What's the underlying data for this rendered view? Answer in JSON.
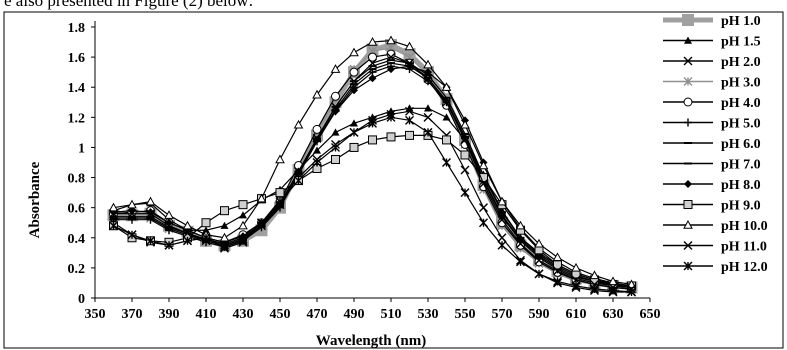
{
  "caption": "e also presented in Figure (2) below:",
  "chart_data": {
    "type": "line",
    "xlabel": "Wavelength (nm)",
    "ylabel": "Absorbance",
    "xlim": [
      350,
      650
    ],
    "ylim": [
      0,
      1.8
    ],
    "x_ticks": [
      350,
      370,
      390,
      410,
      430,
      450,
      470,
      490,
      510,
      530,
      550,
      570,
      590,
      610,
      630,
      650
    ],
    "y_ticks": [
      "0",
      "0.2",
      "0.4",
      "0.6",
      "0.8",
      "1",
      "1.2",
      "1.4",
      "1.6",
      "1.8"
    ],
    "y_tick_values": [
      0,
      0.2,
      0.4,
      0.6,
      0.8,
      1.0,
      1.2,
      1.4,
      1.6,
      1.8
    ],
    "grid": false,
    "legend": "right",
    "x": [
      360,
      370,
      380,
      390,
      400,
      410,
      420,
      430,
      440,
      450,
      460,
      470,
      480,
      490,
      500,
      510,
      520,
      530,
      540,
      550,
      560,
      570,
      580,
      590,
      600,
      610,
      620,
      630,
      640
    ],
    "series": [
      {
        "name": "pH 1.0",
        "marker": "square",
        "color": "#a0a0a0",
        "values": [
          0.55,
          0.55,
          0.56,
          0.48,
          0.44,
          0.38,
          0.35,
          0.38,
          0.45,
          0.6,
          0.85,
          1.08,
          1.3,
          1.5,
          1.65,
          1.68,
          1.62,
          1.5,
          1.32,
          1.05,
          0.75,
          0.5,
          0.35,
          0.25,
          0.18,
          0.13,
          0.1,
          0.08,
          0.07
        ]
      },
      {
        "name": "pH 1.5",
        "marker": "triangle",
        "color": "#000000",
        "values": [
          0.58,
          0.62,
          0.63,
          0.52,
          0.45,
          0.45,
          0.48,
          0.55,
          0.65,
          0.72,
          0.85,
          0.98,
          1.1,
          1.16,
          1.2,
          1.24,
          1.26,
          1.26,
          1.2,
          1.05,
          0.82,
          0.58,
          0.4,
          0.3,
          0.22,
          0.16,
          0.12,
          0.1,
          0.08
        ]
      },
      {
        "name": "pH 2.0",
        "marker": "x",
        "color": "#000000",
        "values": [
          0.5,
          0.42,
          0.37,
          0.35,
          0.38,
          0.4,
          0.33,
          0.37,
          0.5,
          0.65,
          0.8,
          0.92,
          1.02,
          1.1,
          1.18,
          1.22,
          1.24,
          1.2,
          1.08,
          0.85,
          0.6,
          0.4,
          0.25,
          0.16,
          0.1,
          0.07,
          0.05,
          0.04,
          0.04
        ]
      },
      {
        "name": "pH 3.0",
        "marker": "asterisk",
        "color": "#909090",
        "values": [
          0.55,
          0.54,
          0.53,
          0.46,
          0.42,
          0.38,
          0.36,
          0.4,
          0.48,
          0.62,
          0.86,
          1.1,
          1.32,
          1.52,
          1.64,
          1.66,
          1.6,
          1.48,
          1.3,
          1.02,
          0.72,
          0.48,
          0.33,
          0.23,
          0.16,
          0.11,
          0.09,
          0.07,
          0.06
        ]
      },
      {
        "name": "pH 4.0",
        "marker": "circle",
        "color": "#000000",
        "values": [
          0.56,
          0.57,
          0.58,
          0.5,
          0.45,
          0.4,
          0.37,
          0.42,
          0.5,
          0.64,
          0.88,
          1.12,
          1.34,
          1.5,
          1.6,
          1.62,
          1.56,
          1.45,
          1.28,
          1.02,
          0.74,
          0.5,
          0.35,
          0.24,
          0.17,
          0.12,
          0.09,
          0.07,
          0.06
        ]
      },
      {
        "name": "pH 5.0",
        "marker": "plus",
        "color": "#000000",
        "values": [
          0.52,
          0.52,
          0.52,
          0.45,
          0.41,
          0.37,
          0.34,
          0.38,
          0.47,
          0.6,
          0.82,
          1.04,
          1.24,
          1.4,
          1.5,
          1.54,
          1.52,
          1.44,
          1.3,
          1.06,
          0.78,
          0.54,
          0.38,
          0.27,
          0.19,
          0.13,
          0.1,
          0.08,
          0.07
        ]
      },
      {
        "name": "pH 6.0",
        "marker": "dash",
        "color": "#000000",
        "values": [
          0.53,
          0.53,
          0.53,
          0.46,
          0.42,
          0.38,
          0.35,
          0.39,
          0.48,
          0.61,
          0.83,
          1.05,
          1.25,
          1.42,
          1.52,
          1.56,
          1.54,
          1.46,
          1.31,
          1.07,
          0.79,
          0.55,
          0.39,
          0.28,
          0.2,
          0.14,
          0.11,
          0.08,
          0.07
        ]
      },
      {
        "name": "pH 7.0",
        "marker": "dash",
        "color": "#000000",
        "values": [
          0.54,
          0.54,
          0.54,
          0.47,
          0.43,
          0.39,
          0.36,
          0.4,
          0.49,
          0.62,
          0.84,
          1.06,
          1.27,
          1.44,
          1.54,
          1.58,
          1.56,
          1.48,
          1.33,
          1.09,
          0.81,
          0.57,
          0.4,
          0.29,
          0.21,
          0.15,
          0.11,
          0.09,
          0.07
        ]
      },
      {
        "name": "pH 8.0",
        "marker": "diamond",
        "color": "#000000",
        "values": [
          0.57,
          0.58,
          0.57,
          0.5,
          0.45,
          0.4,
          0.37,
          0.41,
          0.5,
          0.63,
          0.84,
          1.05,
          1.24,
          1.38,
          1.46,
          1.52,
          1.54,
          1.5,
          1.4,
          1.18,
          0.9,
          0.64,
          0.46,
          0.33,
          0.24,
          0.17,
          0.13,
          0.1,
          0.08
        ]
      },
      {
        "name": "pH 9.0",
        "marker": "square-open",
        "color": "#000000",
        "values": [
          0.48,
          0.4,
          0.38,
          0.37,
          0.4,
          0.5,
          0.58,
          0.62,
          0.66,
          0.7,
          0.78,
          0.86,
          0.92,
          1.0,
          1.05,
          1.07,
          1.08,
          1.08,
          1.05,
          0.95,
          0.8,
          0.62,
          0.45,
          0.32,
          0.22,
          0.16,
          0.12,
          0.09,
          0.08
        ]
      },
      {
        "name": "pH 10.0",
        "marker": "triangle-open",
        "color": "#000000",
        "values": [
          0.6,
          0.62,
          0.64,
          0.55,
          0.48,
          0.42,
          0.4,
          0.48,
          0.66,
          0.92,
          1.15,
          1.35,
          1.52,
          1.63,
          1.7,
          1.71,
          1.67,
          1.55,
          1.4,
          1.15,
          0.88,
          0.64,
          0.48,
          0.36,
          0.27,
          0.2,
          0.15,
          0.11,
          0.09
        ]
      },
      {
        "name": "pH 11.0",
        "marker": "x",
        "color": "#000000",
        "values": [
          0.56,
          0.56,
          0.56,
          0.48,
          0.43,
          0.38,
          0.35,
          0.39,
          0.48,
          0.62,
          0.84,
          1.06,
          1.27,
          1.44,
          1.56,
          1.6,
          1.56,
          1.46,
          1.3,
          1.05,
          0.76,
          0.52,
          0.36,
          0.25,
          0.18,
          0.12,
          0.09,
          0.07,
          0.06
        ]
      },
      {
        "name": "pH 12.0",
        "marker": "asterisk",
        "color": "#000000",
        "values": [
          0.48,
          0.42,
          0.38,
          0.35,
          0.38,
          0.4,
          0.34,
          0.38,
          0.5,
          0.64,
          0.78,
          0.9,
          1.0,
          1.1,
          1.16,
          1.2,
          1.18,
          1.1,
          0.9,
          0.7,
          0.5,
          0.35,
          0.24,
          0.16,
          0.11,
          0.08,
          0.06,
          0.05,
          0.04
        ]
      }
    ]
  }
}
